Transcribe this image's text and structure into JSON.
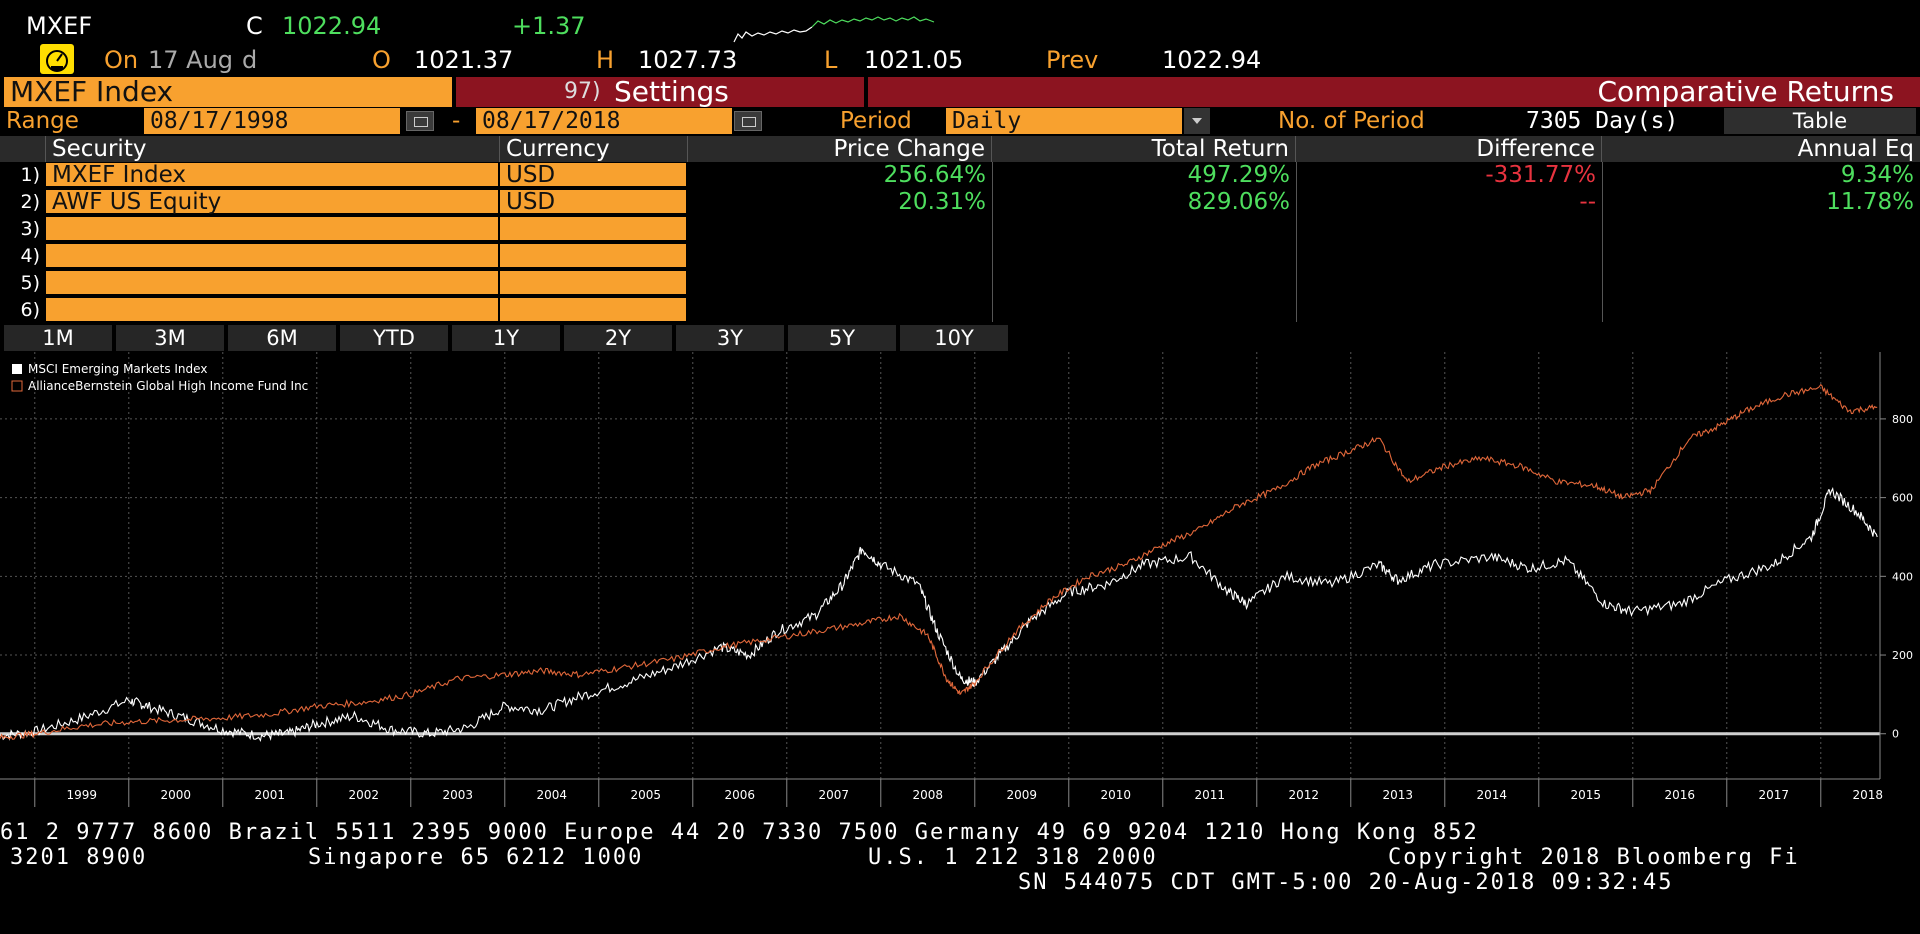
{
  "ticker": {
    "symbol": "MXEF",
    "close_label": "C",
    "close": "1022.94",
    "change": "+1.37",
    "on_label": "On",
    "date": "17 Aug",
    "suffix": "d",
    "open_label": "O",
    "open": "1021.37",
    "high_label": "H",
    "high": "1027.73",
    "low_label": "L",
    "low": "1021.05",
    "prev_label": "Prev",
    "prev": "1022.94"
  },
  "header": {
    "security": "MXEF Index",
    "settings_num": "97)",
    "settings": "Settings",
    "title": "Comparative Returns"
  },
  "range": {
    "label": "Range",
    "start": "08/17/1998",
    "dash": "-",
    "end": "08/17/2018",
    "period_label": "Period",
    "period": "Daily",
    "num_label": "No. of Period",
    "num": "7305 Day(s)",
    "table_button": "Table"
  },
  "table": {
    "headers": [
      "Security",
      "Currency",
      "Price Change",
      "Total Return",
      "Difference",
      "Annual Eq"
    ],
    "rows": [
      {
        "num": "1)",
        "security": "MXEF Index",
        "currency": "USD",
        "price_change": "256.64%",
        "total_return": "497.29%",
        "difference": "-331.77%",
        "annual_eq": "9.34%"
      },
      {
        "num": "2)",
        "security": "AWF US Equity",
        "currency": "USD",
        "price_change": "20.31%",
        "total_return": "829.06%",
        "difference": "--",
        "annual_eq": "11.78%"
      },
      {
        "num": "3)",
        "security": "",
        "currency": "",
        "price_change": "",
        "total_return": "",
        "difference": "",
        "annual_eq": ""
      },
      {
        "num": "4)",
        "security": "",
        "currency": "",
        "price_change": "",
        "total_return": "",
        "difference": "",
        "annual_eq": ""
      },
      {
        "num": "5)",
        "security": "",
        "currency": "",
        "price_change": "",
        "total_return": "",
        "difference": "",
        "annual_eq": ""
      },
      {
        "num": "6)",
        "security": "",
        "currency": "",
        "price_change": "",
        "total_return": "",
        "difference": "",
        "annual_eq": ""
      }
    ]
  },
  "period_buttons": [
    "1M",
    "3M",
    "6M",
    "YTD",
    "1Y",
    "2Y",
    "3Y",
    "5Y",
    "10Y"
  ],
  "colors": {
    "orange": "#f8a12f",
    "maroon": "#8c1420",
    "green": "#4ede5e",
    "red": "#e8333f",
    "series_index": "#ffffff",
    "series_fund": "#e0673a"
  },
  "chart_data": {
    "type": "line",
    "title": "",
    "xlabel": "",
    "ylabel": "",
    "x_ticks": [
      "1999",
      "2000",
      "2001",
      "2002",
      "2003",
      "2004",
      "2005",
      "2006",
      "2007",
      "2008",
      "2009",
      "2010",
      "2011",
      "2012",
      "2013",
      "2014",
      "2015",
      "2016",
      "2017",
      "2018"
    ],
    "y_ticks": [
      0,
      200,
      400,
      600,
      800
    ],
    "xlim": [
      1998.63,
      2018.63
    ],
    "ylim": [
      -115,
      970
    ],
    "grid": true,
    "legend_position": "top-left",
    "series": [
      {
        "name": "MSCI Emerging Markets Index",
        "color": "#ffffff",
        "x": [
          1998.63,
          1999.0,
          1999.5,
          2000.0,
          2000.2,
          2000.6,
          2001.0,
          2001.4,
          2001.7,
          2002.0,
          2002.4,
          2002.8,
          2003.2,
          2003.6,
          2004.0,
          2004.4,
          2004.8,
          2005.3,
          2005.8,
          2006.3,
          2006.6,
          2006.9,
          2007.3,
          2007.6,
          2007.8,
          2008.0,
          2008.4,
          2008.6,
          2008.85,
          2009.0,
          2009.3,
          2009.6,
          2010.0,
          2010.4,
          2010.8,
          2011.3,
          2011.7,
          2011.9,
          2012.3,
          2012.8,
          2013.3,
          2013.5,
          2013.9,
          2014.5,
          2014.9,
          2015.3,
          2015.7,
          2016.0,
          2016.5,
          2017.0,
          2017.5,
          2017.9,
          2018.1,
          2018.4,
          2018.6
        ],
        "y": [
          -5,
          5,
          40,
          85,
          70,
          40,
          10,
          -5,
          0,
          25,
          45,
          10,
          0,
          15,
          70,
          60,
          95,
          130,
          170,
          220,
          200,
          260,
          300,
          380,
          470,
          430,
          380,
          260,
          140,
          130,
          210,
          290,
          360,
          380,
          430,
          450,
          360,
          330,
          400,
          380,
          430,
          390,
          430,
          450,
          420,
          440,
          330,
          310,
          330,
          390,
          430,
          500,
          620,
          560,
          500
        ]
      },
      {
        "name": "AllianceBernstein Global High Income Fund Inc",
        "color": "#e0673a",
        "x": [
          1998.63,
          1999.0,
          1999.5,
          2000.0,
          2000.5,
          2001.0,
          2001.5,
          2002.0,
          2002.5,
          2003.0,
          2003.5,
          2004.0,
          2004.4,
          2004.8,
          2005.3,
          2005.8,
          2006.3,
          2006.8,
          2007.3,
          2007.8,
          2008.2,
          2008.5,
          2008.7,
          2008.85,
          2009.0,
          2009.4,
          2009.8,
          2010.2,
          2010.6,
          2011.0,
          2011.4,
          2011.8,
          2012.2,
          2012.6,
          2013.0,
          2013.3,
          2013.6,
          2014.0,
          2014.4,
          2014.8,
          2015.2,
          2015.6,
          2015.9,
          2016.2,
          2016.6,
          2016.9,
          2017.2,
          2017.6,
          2018.0,
          2018.3,
          2018.6
        ],
        "y": [
          -10,
          0,
          20,
          30,
          35,
          40,
          50,
          70,
          80,
          100,
          140,
          150,
          160,
          150,
          170,
          190,
          220,
          240,
          260,
          280,
          300,
          250,
          140,
          100,
          130,
          250,
          340,
          400,
          430,
          480,
          520,
          580,
          620,
          680,
          720,
          750,
          640,
          680,
          700,
          680,
          640,
          630,
          600,
          620,
          750,
          780,
          820,
          860,
          880,
          820,
          830
        ]
      }
    ]
  },
  "footer": {
    "line1": "61 2 9777 8600 Brazil 5511 2395 9000 Europe 44 20 7330 7500 Germany 49 69 9204 1210 Hong Kong 852",
    "line2a": "3201 8900",
    "line2b": "Singapore 65 6212 1000",
    "line2c": "U.S. 1 212 318 2000",
    "line2d": "Copyright 2018 Bloomberg Fi",
    "line3": "SN 544075 CDT  GMT-5:00 20-Aug-2018 09:32:45"
  }
}
